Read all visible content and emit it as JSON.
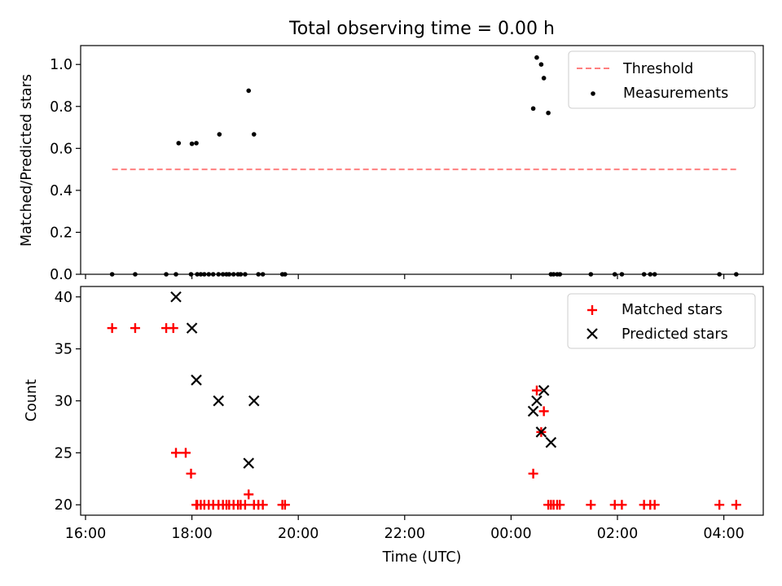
{
  "figure": {
    "title": "Total observing time = 0.00 h"
  },
  "chart_data": [
    {
      "type": "scatter",
      "panel": "top",
      "xlabel": "",
      "ylabel": "Matched/Predicted stars",
      "xlim": [
        "16:00",
        "04:50"
      ],
      "ylim": [
        0,
        1.09
      ],
      "yticks": [
        0.0,
        0.2,
        0.4,
        0.6,
        0.8,
        1.0
      ],
      "yticklabels": [
        "0.0",
        "0.2",
        "0.4",
        "0.6",
        "0.8",
        "1.0"
      ],
      "legend_position": "top-right",
      "colors": {
        "threshold": "#ff7f7f",
        "measurements": "#000000"
      },
      "series": [
        {
          "name": "Threshold",
          "kind": "dashed-line",
          "x": [
            "16:30",
            "04:15"
          ],
          "y": [
            0.5,
            0.5
          ]
        },
        {
          "name": "Measurements",
          "kind": "dots",
          "x": [
            "16:30",
            "16:56",
            "17:31",
            "17:42",
            "17:45",
            "17:59",
            "18:00",
            "18:05",
            "18:06",
            "18:10",
            "18:14",
            "18:19",
            "18:24",
            "18:30",
            "18:31",
            "18:35",
            "18:39",
            "18:42",
            "18:47",
            "18:52",
            "18:55",
            "19:00",
            "19:04",
            "19:10",
            "19:15",
            "19:20",
            "19:42",
            "19:45",
            "00:25",
            "00:29",
            "00:34",
            "00:37",
            "00:42",
            "00:45",
            "00:48",
            "00:52",
            "00:55",
            "01:30",
            "01:57",
            "02:05",
            "02:30",
            "02:37",
            "02:42",
            "03:55",
            "04:14"
          ],
          "y": [
            0,
            0,
            0,
            0,
            0.625,
            0,
            0.622,
            0.625,
            0,
            0,
            0,
            0,
            0,
            0,
            0.667,
            0,
            0,
            0,
            0,
            0,
            0,
            0,
            0.875,
            0.667,
            0,
            0,
            0,
            0,
            0.79,
            1.033,
            1.0,
            0.935,
            0.769,
            0,
            0,
            0,
            0,
            0,
            0,
            0,
            0,
            0,
            0,
            0,
            0
          ]
        }
      ]
    },
    {
      "type": "scatter",
      "panel": "bottom",
      "xlabel": "Time (UTC)",
      "ylabel": "Count",
      "xlim": [
        "16:00",
        "04:50"
      ],
      "ylim": [
        19,
        41
      ],
      "xticks": [
        "16:00",
        "18:00",
        "20:00",
        "22:00",
        "00:00",
        "02:00",
        "04:00"
      ],
      "yticks": [
        20,
        25,
        30,
        35,
        40
      ],
      "yticklabels": [
        "20",
        "25",
        "30",
        "35",
        "40"
      ],
      "legend_position": "top-right",
      "colors": {
        "matched": "#ff0000",
        "predicted": "#000000"
      },
      "series": [
        {
          "name": "Matched stars",
          "marker": "plus",
          "x": [
            "16:30",
            "16:56",
            "17:31",
            "17:39",
            "17:42",
            "17:53",
            "17:59",
            "18:05",
            "18:06",
            "18:10",
            "18:14",
            "18:19",
            "18:24",
            "18:30",
            "18:35",
            "18:39",
            "18:42",
            "18:47",
            "18:52",
            "18:55",
            "19:00",
            "19:04",
            "19:10",
            "19:15",
            "19:20",
            "19:42",
            "19:45",
            "00:25",
            "00:29",
            "00:34",
            "00:37",
            "00:42",
            "00:45",
            "00:48",
            "00:52",
            "00:55",
            "01:30",
            "01:57",
            "02:05",
            "02:30",
            "02:37",
            "02:42",
            "03:55",
            "04:14"
          ],
          "y": [
            37,
            37,
            37,
            37,
            25,
            25,
            23,
            20,
            20,
            20,
            20,
            20,
            20,
            20,
            20,
            20,
            20,
            20,
            20,
            20,
            20,
            21,
            20,
            20,
            20,
            20,
            20,
            23,
            31,
            27,
            29,
            20,
            20,
            20,
            20,
            20,
            20,
            20,
            20,
            20,
            20,
            20,
            20,
            20
          ]
        },
        {
          "name": "Predicted stars",
          "marker": "x",
          "x": [
            "17:42",
            "18:00",
            "18:05",
            "18:30",
            "19:04",
            "19:10",
            "00:25",
            "00:29",
            "00:34",
            "00:37",
            "00:45"
          ],
          "y": [
            40,
            37,
            32,
            30,
            24,
            30,
            29,
            30,
            27,
            31,
            26
          ]
        }
      ]
    }
  ]
}
